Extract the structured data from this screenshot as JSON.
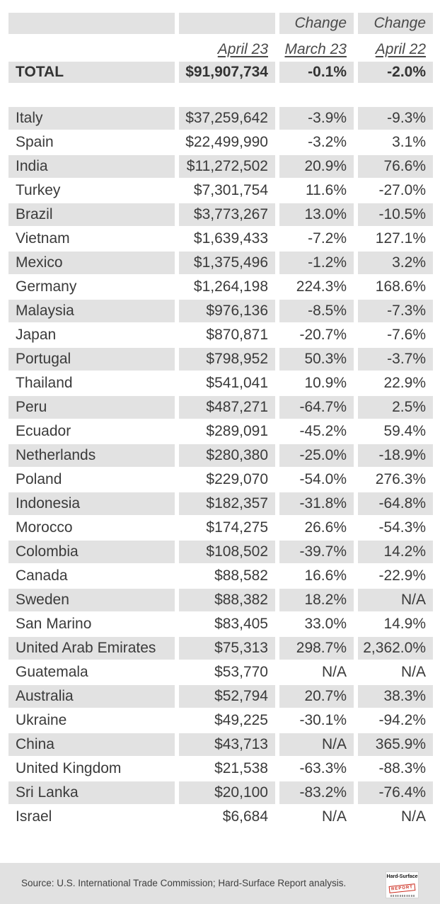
{
  "chart_data": {
    "type": "table",
    "title": "",
    "header": {
      "change_label": "Change",
      "april23_label": "April 23",
      "march23_label": "March 23",
      "april22_label": "April 22"
    },
    "total": {
      "label": "TOTAL",
      "value": "$91,907,734",
      "change_march23": "-0.1%",
      "change_april22": "-2.0%"
    },
    "rows": [
      {
        "country": "Italy",
        "value": "$37,259,642",
        "change_march23": "-3.9%",
        "change_april22": "-9.3%"
      },
      {
        "country": "Spain",
        "value": "$22,499,990",
        "change_march23": "-3.2%",
        "change_april22": "3.1%"
      },
      {
        "country": "India",
        "value": "$11,272,502",
        "change_march23": "20.9%",
        "change_april22": "76.6%"
      },
      {
        "country": "Turkey",
        "value": "$7,301,754",
        "change_march23": "11.6%",
        "change_april22": "-27.0%"
      },
      {
        "country": "Brazil",
        "value": "$3,773,267",
        "change_march23": "13.0%",
        "change_april22": "-10.5%"
      },
      {
        "country": "Vietnam",
        "value": "$1,639,433",
        "change_march23": "-7.2%",
        "change_april22": "127.1%"
      },
      {
        "country": "Mexico",
        "value": "$1,375,496",
        "change_march23": "-1.2%",
        "change_april22": "3.2%"
      },
      {
        "country": "Germany",
        "value": "$1,264,198",
        "change_march23": "224.3%",
        "change_april22": "168.6%"
      },
      {
        "country": "Malaysia",
        "value": "$976,136",
        "change_march23": "-8.5%",
        "change_april22": "-7.3%"
      },
      {
        "country": "Japan",
        "value": "$870,871",
        "change_march23": "-20.7%",
        "change_april22": "-7.6%"
      },
      {
        "country": "Portugal",
        "value": "$798,952",
        "change_march23": "50.3%",
        "change_april22": "-3.7%"
      },
      {
        "country": "Thailand",
        "value": "$541,041",
        "change_march23": "10.9%",
        "change_april22": "22.9%"
      },
      {
        "country": "Peru",
        "value": "$487,271",
        "change_march23": "-64.7%",
        "change_april22": "2.5%"
      },
      {
        "country": "Ecuador",
        "value": "$289,091",
        "change_march23": "-45.2%",
        "change_april22": "59.4%"
      },
      {
        "country": "Netherlands",
        "value": "$280,380",
        "change_march23": "-25.0%",
        "change_april22": "-18.9%"
      },
      {
        "country": "Poland",
        "value": "$229,070",
        "change_march23": "-54.0%",
        "change_april22": "276.3%"
      },
      {
        "country": "Indonesia",
        "value": "$182,357",
        "change_march23": "-31.8%",
        "change_april22": "-64.8%"
      },
      {
        "country": "Morocco",
        "value": "$174,275",
        "change_march23": "26.6%",
        "change_april22": "-54.3%"
      },
      {
        "country": "Colombia",
        "value": "$108,502",
        "change_march23": "-39.7%",
        "change_april22": "14.2%"
      },
      {
        "country": "Canada",
        "value": "$88,582",
        "change_march23": "16.6%",
        "change_april22": "-22.9%"
      },
      {
        "country": "Sweden",
        "value": "$88,382",
        "change_march23": "18.2%",
        "change_april22": "N/A"
      },
      {
        "country": "San Marino",
        "value": "$83,405",
        "change_march23": "33.0%",
        "change_april22": "14.9%"
      },
      {
        "country": "United Arab Emirates",
        "value": "$75,313",
        "change_march23": "298.7%",
        "change_april22": "2,362.0%"
      },
      {
        "country": "Guatemala",
        "value": "$53,770",
        "change_march23": "N/A",
        "change_april22": "N/A"
      },
      {
        "country": "Australia",
        "value": "$52,794",
        "change_march23": "20.7%",
        "change_april22": "38.3%"
      },
      {
        "country": "Ukraine",
        "value": "$49,225",
        "change_march23": "-30.1%",
        "change_april22": "-94.2%"
      },
      {
        "country": "China",
        "value": "$43,713",
        "change_march23": "N/A",
        "change_april22": "365.9%"
      },
      {
        "country": "United Kingdom",
        "value": "$21,538",
        "change_march23": "-63.3%",
        "change_april22": "-88.3%"
      },
      {
        "country": "Sri Lanka",
        "value": "$20,100",
        "change_march23": "-83.2%",
        "change_april22": "-76.4%"
      },
      {
        "country": "Israel",
        "value": "$6,684",
        "change_march23": "N/A",
        "change_april22": "N/A"
      }
    ]
  },
  "footer": {
    "source_text": "Source: U.S. International Trade Commission; Hard-Surface Report analysis.",
    "logo": {
      "title": "Hard-Surface",
      "stamp": "REPORT"
    }
  },
  "colors": {
    "row_stripe": "#e2e2e2",
    "footer_bg": "#e1e1e1",
    "text": "#3a3a3a",
    "logo_red": "#cc2b1e"
  }
}
